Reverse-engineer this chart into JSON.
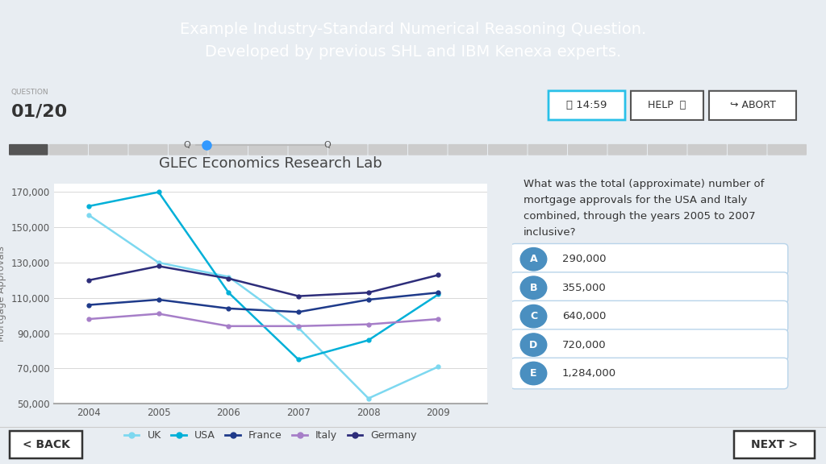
{
  "title": "GLEC Economics Research Lab",
  "header_text": "Example Industry-Standard Numerical Reasoning Question.\nDeveloped by previous SHL and IBM Kenexa experts.",
  "header_bg": "#29c0e8",
  "header_text_color": "#ffffff",
  "bg_color": "#e8edf2",
  "card_bg": "#ffffff",
  "years": [
    2004,
    2005,
    2006,
    2007,
    2008,
    2009
  ],
  "series": {
    "UK": [
      157000,
      130000,
      122000,
      93000,
      53000,
      71000
    ],
    "USA": [
      162000,
      170000,
      113000,
      75000,
      86000,
      112000
    ],
    "France": [
      106000,
      109000,
      104000,
      102000,
      109000,
      113000
    ],
    "Italy": [
      98000,
      101000,
      94000,
      94000,
      95000,
      98000
    ],
    "Germany": [
      120000,
      128000,
      121000,
      111000,
      113000,
      123000
    ]
  },
  "colors": {
    "UK": "#7dd8f0",
    "USA": "#00b0d8",
    "France": "#1e3a8a",
    "Italy": "#a67ec8",
    "Germany": "#2d2d7a"
  },
  "ylabel": "Mortgage Approvals",
  "ylim": [
    50000,
    175000
  ],
  "yticks": [
    50000,
    70000,
    90000,
    110000,
    130000,
    150000,
    170000
  ],
  "question_text": "What was the total (approximate) number of\nmortgage approvals for the USA and Italy\ncombined, through the years 2005 to 2007\ninclusive?",
  "options": [
    {
      "label": "A",
      "text": "290,000"
    },
    {
      "label": "B",
      "text": "355,000"
    },
    {
      "label": "C",
      "text": "640,000"
    },
    {
      "label": "D",
      "text": "720,000"
    },
    {
      "label": "E",
      "text": "1,284,000"
    }
  ],
  "option_selected": "none",
  "option_btn_color": "#4a8fc0",
  "question_label": "QUESTION",
  "question_number": "01/20",
  "timer_text": "14:59",
  "progress_filled": "#555555",
  "progress_empty": "#cccccc",
  "back_text": "< BACK",
  "next_text": "NEXT >"
}
